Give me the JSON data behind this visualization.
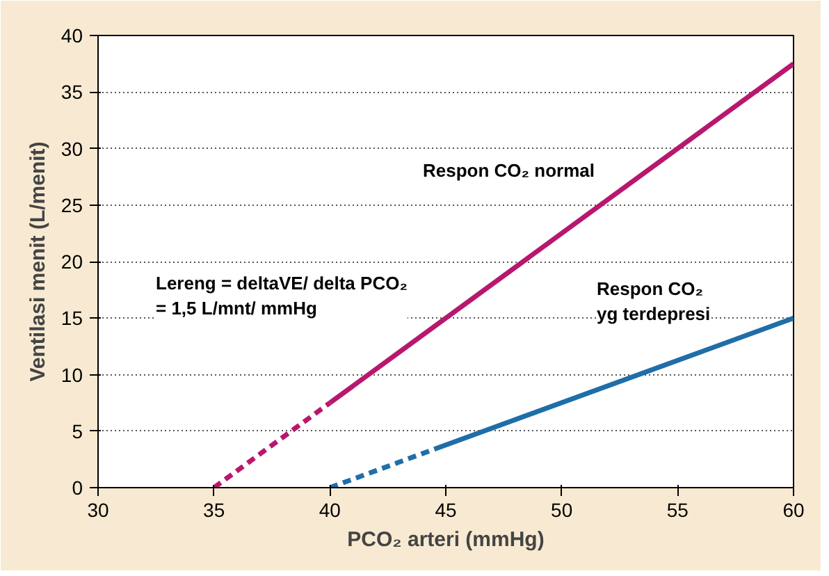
{
  "chart_data": {
    "type": "line",
    "xlabel": "PCO₂ arteri (mmHg)",
    "ylabel": "Ventilasi menit (L/menit)",
    "xlim": [
      30,
      60
    ],
    "ylim": [
      0,
      40
    ],
    "xticks": [
      30,
      35,
      40,
      45,
      50,
      55,
      60
    ],
    "yticks": [
      0,
      5,
      10,
      15,
      20,
      25,
      30,
      35,
      40
    ],
    "grid": "y",
    "series": [
      {
        "color": "#b8176e",
        "x": [
          35,
          40
        ],
        "values": [
          0,
          7.5
        ],
        "line_style": "dashed"
      },
      {
        "color": "#b8176e",
        "x": [
          40,
          60
        ],
        "values": [
          7.5,
          37.5
        ],
        "line_style": "solid"
      },
      {
        "color": "#1f6ea8",
        "x": [
          40,
          44.5
        ],
        "values": [
          0,
          3.4
        ],
        "line_style": "dashed"
      },
      {
        "color": "#1f6ea8",
        "x": [
          44.5,
          60
        ],
        "values": [
          3.4,
          15
        ],
        "line_style": "solid"
      }
    ],
    "annotations": [
      "Respon CO₂ normal",
      "Lereng = deltaVE/ delta PCO₂\n= 1,5 L/mnt/ mmHg",
      "Respon CO₂\nyg terdepresi"
    ]
  }
}
